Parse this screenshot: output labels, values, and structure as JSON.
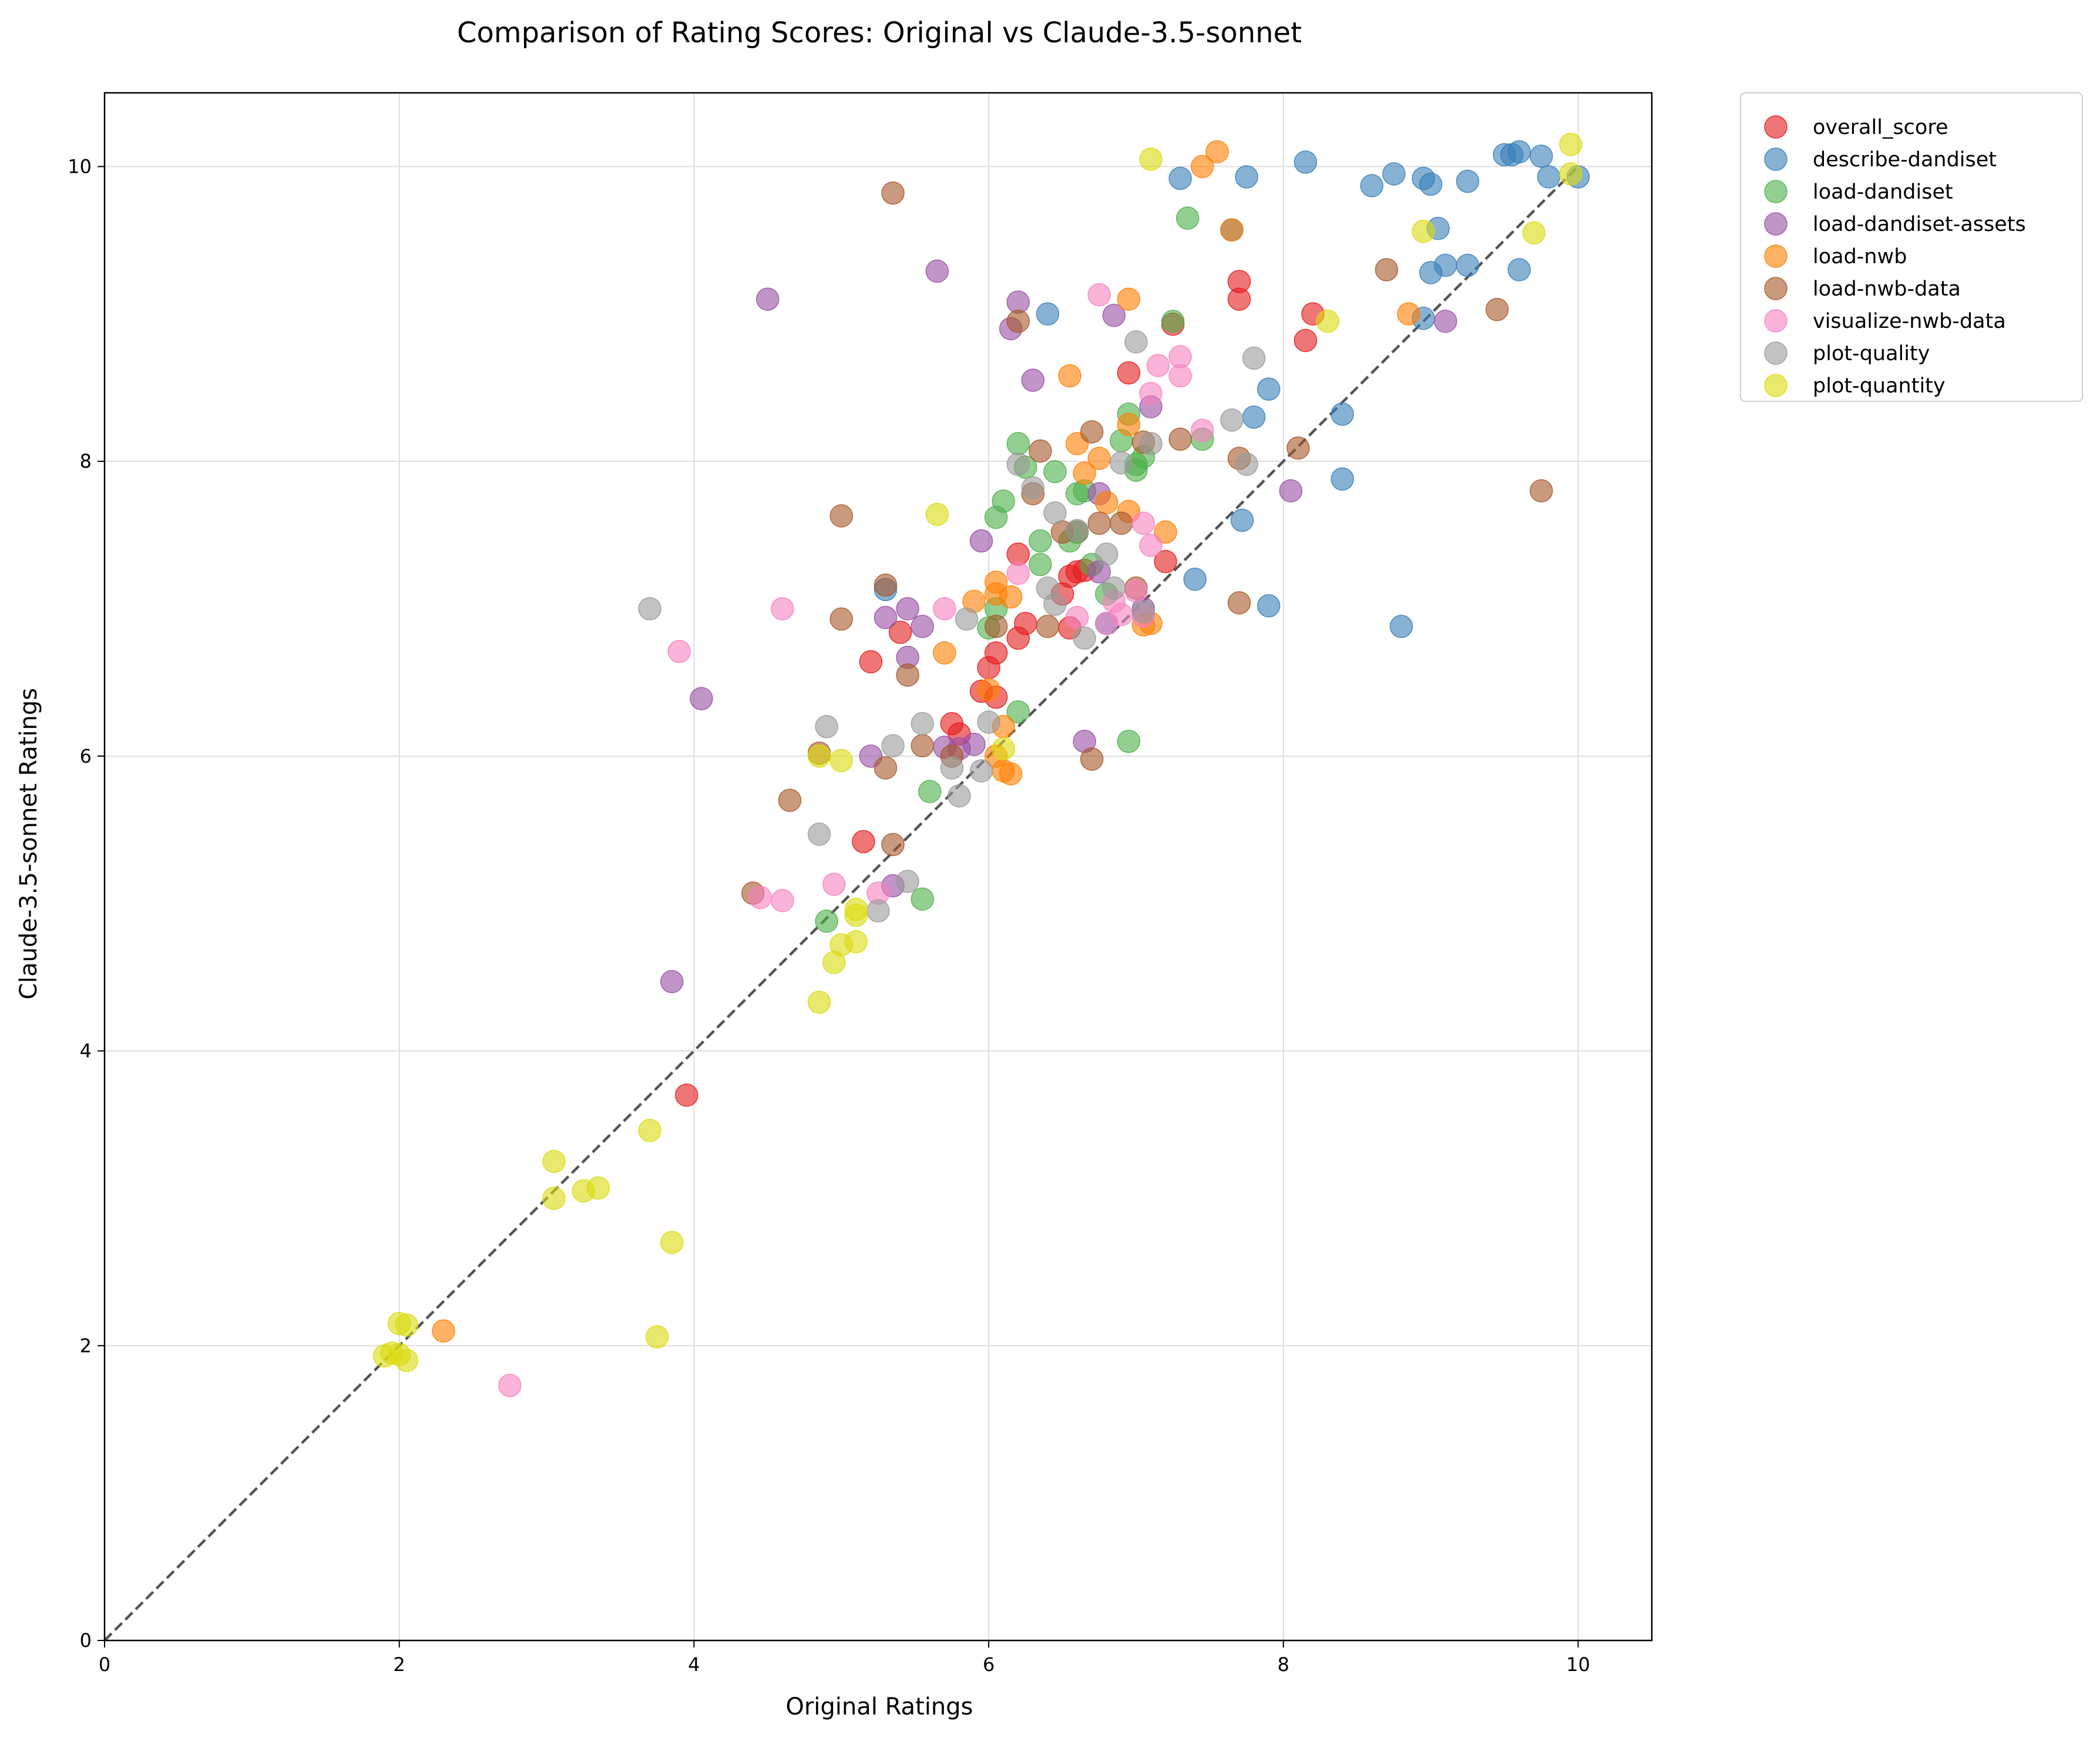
{
  "chart_data": {
    "type": "scatter",
    "title": "Comparison of Rating Scores: Original vs Claude-3.5-sonnet",
    "xlabel": "Original Ratings",
    "ylabel": "Claude-3.5-sonnet Ratings",
    "xlim": [
      0,
      10.5
    ],
    "ylim": [
      0,
      10.5
    ],
    "xticks": [
      "0",
      "2",
      "4",
      "6",
      "8",
      "10"
    ],
    "yticks": [
      "0",
      "2",
      "4",
      "6",
      "8",
      "10"
    ],
    "grid": true,
    "legend_position": "outside-top-right",
    "reference_line": {
      "style": "dashed",
      "color": "#555555",
      "from": [
        0,
        0
      ],
      "to": [
        10,
        10
      ]
    },
    "series": [
      {
        "name": "overall_score",
        "color": "#e41a1c",
        "points": [
          [
            3.95,
            3.7
          ],
          [
            5.15,
            5.42
          ],
          [
            5.2,
            6.64
          ],
          [
            5.4,
            6.84
          ],
          [
            5.75,
            6.22
          ],
          [
            5.8,
            6.15
          ],
          [
            5.95,
            6.44
          ],
          [
            6.05,
            6.7
          ],
          [
            6.0,
            6.6
          ],
          [
            6.05,
            6.4
          ],
          [
            6.2,
            6.8
          ],
          [
            6.25,
            6.9
          ],
          [
            6.2,
            7.37
          ],
          [
            6.5,
            7.1
          ],
          [
            6.55,
            7.22
          ],
          [
            6.6,
            7.25
          ],
          [
            6.65,
            7.26
          ],
          [
            6.6,
            7.52
          ],
          [
            6.55,
            6.87
          ],
          [
            6.95,
            8.6
          ],
          [
            7.2,
            7.32
          ],
          [
            7.25,
            8.93
          ],
          [
            7.7,
            9.1
          ],
          [
            7.7,
            9.22
          ],
          [
            8.15,
            8.82
          ],
          [
            8.2,
            9.0
          ]
        ]
      },
      {
        "name": "describe-dandiset",
        "color": "#377eb8",
        "points": [
          [
            5.3,
            7.13
          ],
          [
            6.4,
            9.0
          ],
          [
            7.3,
            9.92
          ],
          [
            7.4,
            7.2
          ],
          [
            7.65,
            9.57
          ],
          [
            7.72,
            7.6
          ],
          [
            7.75,
            9.93
          ],
          [
            7.8,
            8.3
          ],
          [
            7.9,
            8.49
          ],
          [
            7.9,
            7.02
          ],
          [
            8.15,
            10.03
          ],
          [
            8.4,
            7.88
          ],
          [
            8.4,
            8.32
          ],
          [
            8.6,
            9.87
          ],
          [
            8.8,
            6.88
          ],
          [
            8.75,
            9.95
          ],
          [
            8.95,
            9.92
          ],
          [
            9.0,
            9.88
          ],
          [
            9.0,
            9.28
          ],
          [
            9.05,
            9.58
          ],
          [
            9.1,
            9.33
          ],
          [
            9.25,
            9.9
          ],
          [
            9.25,
            9.33
          ],
          [
            9.5,
            10.08
          ],
          [
            9.55,
            10.08
          ],
          [
            9.6,
            10.1
          ],
          [
            9.6,
            9.3
          ],
          [
            9.75,
            10.07
          ],
          [
            9.8,
            9.93
          ],
          [
            10.0,
            9.93
          ],
          [
            8.95,
            8.97
          ],
          [
            6.8,
            6.9
          ]
        ]
      },
      {
        "name": "load-dandiset",
        "color": "#4daf4a",
        "points": [
          [
            4.9,
            4.88
          ],
          [
            5.55,
            5.03
          ],
          [
            5.6,
            5.76
          ],
          [
            6.0,
            6.87
          ],
          [
            6.05,
            7.62
          ],
          [
            6.1,
            7.73
          ],
          [
            6.2,
            8.12
          ],
          [
            6.2,
            6.3
          ],
          [
            6.25,
            7.96
          ],
          [
            6.35,
            7.3
          ],
          [
            6.35,
            7.46
          ],
          [
            6.45,
            7.93
          ],
          [
            6.55,
            7.46
          ],
          [
            6.6,
            7.78
          ],
          [
            6.6,
            7.52
          ],
          [
            6.65,
            7.8
          ],
          [
            6.8,
            7.1
          ],
          [
            6.9,
            8.14
          ],
          [
            6.95,
            8.32
          ],
          [
            6.95,
            6.1
          ],
          [
            7.0,
            7.98
          ],
          [
            7.0,
            7.94
          ],
          [
            7.05,
            8.03
          ],
          [
            7.25,
            8.95
          ],
          [
            7.35,
            9.65
          ],
          [
            7.45,
            8.15
          ],
          [
            6.05,
            7.0
          ],
          [
            6.7,
            7.3
          ]
        ]
      },
      {
        "name": "load-dandiset-assets",
        "color": "#984ea3",
        "points": [
          [
            3.85,
            4.47
          ],
          [
            4.05,
            6.39
          ],
          [
            4.5,
            9.1
          ],
          [
            5.2,
            6.0
          ],
          [
            5.3,
            6.94
          ],
          [
            5.35,
            5.12
          ],
          [
            5.45,
            6.67
          ],
          [
            5.45,
            7.0
          ],
          [
            5.55,
            6.88
          ],
          [
            5.65,
            9.29
          ],
          [
            5.7,
            6.06
          ],
          [
            5.8,
            6.05
          ],
          [
            5.9,
            6.08
          ],
          [
            5.95,
            7.46
          ],
          [
            6.15,
            8.9
          ],
          [
            6.2,
            9.08
          ],
          [
            6.3,
            8.55
          ],
          [
            6.65,
            6.1
          ],
          [
            6.75,
            7.25
          ],
          [
            6.75,
            7.78
          ],
          [
            6.85,
            8.99
          ],
          [
            7.1,
            8.37
          ],
          [
            8.05,
            7.8
          ],
          [
            9.1,
            8.95
          ],
          [
            7.05,
            7.0
          ]
        ]
      },
      {
        "name": "load-nwb",
        "color": "#ff7f00",
        "points": [
          [
            2.3,
            2.1
          ],
          [
            5.7,
            6.7
          ],
          [
            5.9,
            7.05
          ],
          [
            6.0,
            6.45
          ],
          [
            6.05,
            7.18
          ],
          [
            6.05,
            7.1
          ],
          [
            6.1,
            5.9
          ],
          [
            6.1,
            6.2
          ],
          [
            6.15,
            5.88
          ],
          [
            6.15,
            7.08
          ],
          [
            6.55,
            8.58
          ],
          [
            6.6,
            8.12
          ],
          [
            6.65,
            7.92
          ],
          [
            6.75,
            8.02
          ],
          [
            6.8,
            7.72
          ],
          [
            6.95,
            8.25
          ],
          [
            6.95,
            9.1
          ],
          [
            6.95,
            7.66
          ],
          [
            7.05,
            6.89
          ],
          [
            7.1,
            6.9
          ],
          [
            7.2,
            7.52
          ],
          [
            7.45,
            10.0
          ],
          [
            7.55,
            10.1
          ],
          [
            7.65,
            9.57
          ],
          [
            8.85,
            9.0
          ],
          [
            6.05,
            6.0
          ]
        ]
      },
      {
        "name": "load-nwb-data",
        "color": "#a65628",
        "points": [
          [
            4.4,
            5.07
          ],
          [
            4.65,
            5.7
          ],
          [
            4.85,
            6.02
          ],
          [
            5.0,
            7.63
          ],
          [
            5.0,
            6.93
          ],
          [
            5.3,
            5.92
          ],
          [
            5.3,
            7.16
          ],
          [
            5.35,
            5.4
          ],
          [
            5.35,
            9.82
          ],
          [
            5.45,
            6.55
          ],
          [
            5.55,
            6.07
          ],
          [
            5.75,
            6.0
          ],
          [
            6.05,
            6.88
          ],
          [
            6.2,
            8.95
          ],
          [
            6.3,
            7.78
          ],
          [
            6.35,
            8.07
          ],
          [
            6.4,
            6.88
          ],
          [
            6.5,
            7.52
          ],
          [
            6.7,
            5.98
          ],
          [
            6.7,
            8.2
          ],
          [
            6.75,
            7.58
          ],
          [
            6.9,
            7.58
          ],
          [
            7.0,
            7.14
          ],
          [
            7.3,
            8.15
          ],
          [
            7.7,
            8.02
          ],
          [
            7.7,
            7.04
          ],
          [
            8.1,
            8.09
          ],
          [
            8.7,
            9.3
          ],
          [
            9.45,
            9.03
          ],
          [
            9.75,
            7.8
          ],
          [
            7.05,
            8.13
          ]
        ]
      },
      {
        "name": "visualize-nwb-data",
        "color": "#f781bf",
        "points": [
          [
            2.75,
            1.73
          ],
          [
            3.9,
            6.71
          ],
          [
            4.45,
            5.04
          ],
          [
            4.6,
            7.0
          ],
          [
            4.6,
            5.02
          ],
          [
            4.95,
            5.13
          ],
          [
            5.25,
            5.07
          ],
          [
            5.7,
            7.0
          ],
          [
            6.2,
            7.24
          ],
          [
            6.6,
            6.94
          ],
          [
            6.75,
            9.13
          ],
          [
            6.8,
            6.9
          ],
          [
            6.9,
            6.96
          ],
          [
            7.0,
            7.12
          ],
          [
            7.05,
            7.58
          ],
          [
            7.1,
            7.43
          ],
          [
            7.1,
            8.46
          ],
          [
            7.15,
            8.65
          ],
          [
            7.3,
            8.58
          ],
          [
            7.3,
            8.71
          ],
          [
            7.45,
            8.21
          ],
          [
            6.85,
            7.05
          ],
          [
            7.05,
            6.95
          ]
        ]
      },
      {
        "name": "plot-quality",
        "color": "#999999",
        "points": [
          [
            3.7,
            7.0
          ],
          [
            4.85,
            5.47
          ],
          [
            4.9,
            6.2
          ],
          [
            5.25,
            4.95
          ],
          [
            5.35,
            6.07
          ],
          [
            5.45,
            5.15
          ],
          [
            5.55,
            6.22
          ],
          [
            5.8,
            5.73
          ],
          [
            5.85,
            6.93
          ],
          [
            6.0,
            6.23
          ],
          [
            6.2,
            7.98
          ],
          [
            6.3,
            7.82
          ],
          [
            6.4,
            7.14
          ],
          [
            6.45,
            7.65
          ],
          [
            6.45,
            7.03
          ],
          [
            6.6,
            7.53
          ],
          [
            6.8,
            7.37
          ],
          [
            6.85,
            7.14
          ],
          [
            6.9,
            7.99
          ],
          [
            7.0,
            8.81
          ],
          [
            7.05,
            6.98
          ],
          [
            7.1,
            8.12
          ],
          [
            7.65,
            8.28
          ],
          [
            7.75,
            7.98
          ],
          [
            7.8,
            8.7
          ],
          [
            5.75,
            5.92
          ],
          [
            5.95,
            5.9
          ],
          [
            6.65,
            6.8
          ]
        ]
      },
      {
        "name": "plot-quantity",
        "color": "#dbdb0d",
        "points": [
          [
            1.9,
            1.93
          ],
          [
            1.95,
            1.95
          ],
          [
            2.0,
            1.94
          ],
          [
            2.0,
            2.15
          ],
          [
            2.05,
            1.9
          ],
          [
            2.05,
            2.14
          ],
          [
            3.05,
            3.25
          ],
          [
            3.05,
            3.0
          ],
          [
            3.25,
            3.05
          ],
          [
            3.35,
            3.07
          ],
          [
            3.7,
            3.46
          ],
          [
            3.75,
            2.06
          ],
          [
            3.85,
            2.7
          ],
          [
            4.85,
            4.33
          ],
          [
            4.95,
            4.6
          ],
          [
            5.0,
            4.72
          ],
          [
            5.0,
            5.97
          ],
          [
            5.1,
            4.74
          ],
          [
            5.1,
            4.96
          ],
          [
            5.1,
            4.92
          ],
          [
            5.65,
            7.64
          ],
          [
            6.1,
            6.05
          ],
          [
            7.1,
            10.05
          ],
          [
            8.3,
            8.95
          ],
          [
            8.95,
            9.56
          ],
          [
            9.7,
            9.55
          ],
          [
            9.95,
            9.95
          ],
          [
            9.95,
            10.15
          ],
          [
            4.85,
            6.0
          ]
        ]
      }
    ]
  }
}
